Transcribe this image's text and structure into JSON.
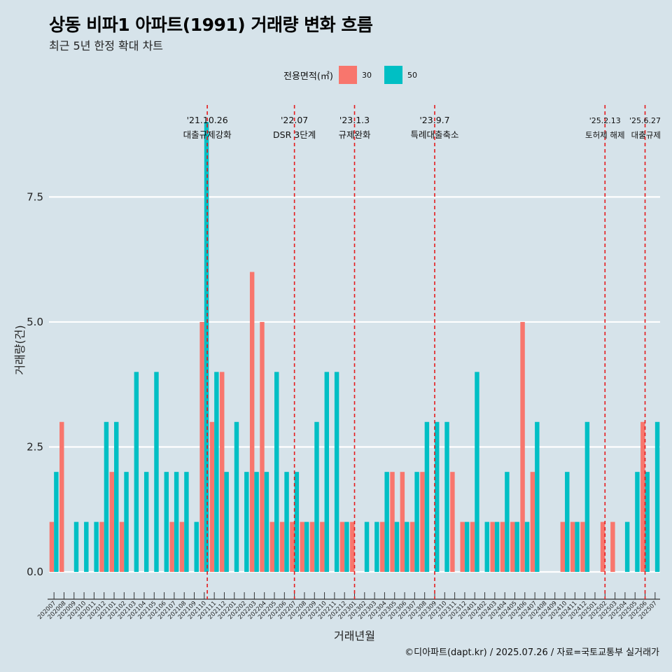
{
  "title": "상동 비파1 아파트(1991) 거래량 변화 흐름",
  "subtitle": "최근 5년 한정 확대 차트",
  "caption": "©디아파트(dapt.kr) / 2025.07.26 / 자료=국토교통부 실거래가",
  "legend": {
    "title": "전용면적(㎡)",
    "items": [
      {
        "label": "30",
        "color": "#f8766d"
      },
      {
        "label": "50",
        "color": "#00bfc4"
      }
    ]
  },
  "chart_data": {
    "type": "bar",
    "title": "상동 비파1 아파트(1991) 거래량 변화 흐름",
    "xlabel": "거래년월",
    "ylabel": "거래량(건)",
    "ylim": [
      -0.35,
      9.55
    ],
    "yticks": [
      0.0,
      2.5,
      5.0,
      7.5
    ],
    "ytick_labels": [
      "0.0",
      "2.5",
      "5.0",
      "7.5"
    ],
    "grid": true,
    "legend_position": "top",
    "categories": [
      "202007",
      "202008",
      "202009",
      "202010",
      "202011",
      "202012",
      "202101",
      "202102",
      "202103",
      "202104",
      "202105",
      "202106",
      "202107",
      "202108",
      "202109",
      "202110",
      "202111",
      "202112",
      "202201",
      "202202",
      "202203",
      "202204",
      "202205",
      "202206",
      "202207",
      "202208",
      "202209",
      "202210",
      "202211",
      "202212",
      "202301",
      "202302",
      "202303",
      "202304",
      "202305",
      "202306",
      "202307",
      "202308",
      "202309",
      "202310",
      "202311",
      "202312",
      "202401",
      "202402",
      "202403",
      "202404",
      "202405",
      "202406",
      "202407",
      "202408",
      "202409",
      "202410",
      "202411",
      "202412",
      "202501",
      "202502",
      "202503",
      "202504",
      "202505",
      "202506",
      "202507"
    ],
    "series": [
      {
        "name": "30",
        "color": "#f8766d",
        "values": [
          1,
          3,
          0,
          0,
          0,
          1,
          2,
          1,
          0,
          0,
          0,
          0,
          1,
          1,
          0,
          5,
          3,
          4,
          0,
          0,
          6,
          5,
          1,
          1,
          1,
          1,
          1,
          1,
          0,
          1,
          1,
          0,
          0,
          1,
          2,
          2,
          1,
          2,
          0,
          0,
          2,
          1,
          1,
          0,
          1,
          1,
          1,
          5,
          2,
          0,
          0,
          1,
          1,
          1,
          0,
          1,
          1,
          0,
          0,
          3,
          0
        ]
      },
      {
        "name": "50",
        "color": "#00bfc4",
        "values": [
          2,
          0,
          1,
          1,
          1,
          3,
          3,
          2,
          4,
          2,
          4,
          2,
          2,
          2,
          1,
          9,
          4,
          2,
          3,
          2,
          2,
          2,
          4,
          2,
          2,
          1,
          3,
          4,
          4,
          1,
          0,
          1,
          1,
          2,
          1,
          1,
          2,
          3,
          3,
          3,
          0,
          1,
          4,
          1,
          1,
          2,
          1,
          1,
          3,
          0,
          0,
          2,
          1,
          3,
          0,
          0,
          0,
          1,
          2,
          2,
          3
        ]
      }
    ],
    "events": [
      {
        "date": "'21.10.26",
        "label": "대출규제강화",
        "index": 15.8
      },
      {
        "date": "'22.07",
        "label": "DSR 3단계",
        "index": 24.5
      },
      {
        "date": "'23.1.3",
        "label": "규제완화",
        "index": 30.5
      },
      {
        "date": "'23.9.7",
        "label": "특례대출축소",
        "index": 38.5
      },
      {
        "date": "'25.2.13",
        "label": "토허제 해제",
        "index": 55.5
      },
      {
        "date": "'25.6.27",
        "label": "대출규제",
        "index": 59.5
      }
    ]
  }
}
